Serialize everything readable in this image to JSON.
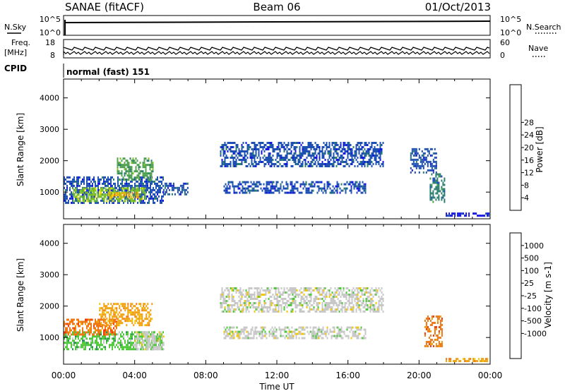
{
  "header": {
    "station": "SANAE (fitACF)",
    "beam": "Beam 06",
    "date": "01/Oct/2013"
  },
  "panels": {
    "nsky": {
      "label": "N.Sky",
      "ticks": [
        "10^5",
        "10^0"
      ],
      "right_label": "N.Search",
      "right_ticks": [
        "10^5",
        "10^0"
      ]
    },
    "freq": {
      "label_top": "Freq.",
      "label_bottom": "[MHz]",
      "ticks": [
        "18",
        "8"
      ],
      "right_label": "Nave",
      "right_ticks": [
        "60",
        "0"
      ]
    },
    "cpid": {
      "label": "CPID",
      "text": "normal (fast) 151"
    }
  },
  "chart_data": [
    {
      "type": "heatmap",
      "name": "power",
      "ylabel": "Slant Range [km]",
      "xlabel": "",
      "yticks": [
        1000,
        2000,
        3000,
        4000
      ],
      "ylim": [
        150,
        4600
      ],
      "xlim": [
        0,
        24
      ],
      "colorbar": {
        "label": "Power [dB]",
        "ticks": [
          "4",
          "8",
          "12",
          "16",
          "20",
          "24",
          "28"
        ],
        "colors": [
          "#1414e6",
          "#1e50b4",
          "#2d7f6e",
          "#4fa04f",
          "#7fc41f",
          "#f0e00a",
          "#f0b40a",
          "#f07814",
          "#f03c0a",
          "#e60000"
        ]
      },
      "regions": [
        {
          "x0": 0.0,
          "x1": 5.6,
          "y0": 650,
          "y1": 1500,
          "level": 1
        },
        {
          "x0": 0.5,
          "x1": 4.6,
          "y0": 700,
          "y1": 1150,
          "level": 4
        },
        {
          "x0": 2.5,
          "x1": 4.2,
          "y0": 800,
          "y1": 1000,
          "level": 6
        },
        {
          "x0": 3.0,
          "x1": 5.0,
          "y0": 1400,
          "y1": 2100,
          "level": 3
        },
        {
          "x0": 5.6,
          "x1": 7.0,
          "y0": 900,
          "y1": 1300,
          "level": 1
        },
        {
          "x0": 8.8,
          "x1": 18.0,
          "y0": 1850,
          "y1": 2600,
          "level": 1
        },
        {
          "x0": 9.0,
          "x1": 17.0,
          "y0": 950,
          "y1": 1350,
          "level": 1
        },
        {
          "x0": 19.5,
          "x1": 21.0,
          "y0": 1600,
          "y1": 2400,
          "level": 1
        },
        {
          "x0": 20.6,
          "x1": 21.4,
          "y0": 700,
          "y1": 1600,
          "level": 2
        },
        {
          "x0": 21.5,
          "x1": 23.9,
          "y0": 250,
          "y1": 350,
          "level": 0
        }
      ]
    },
    {
      "type": "heatmap",
      "name": "velocity",
      "ylabel": "Slant Range [km]",
      "xlabel": "Time UT",
      "xticks": [
        "00:00",
        "04:00",
        "08:00",
        "12:00",
        "16:00",
        "20:00",
        "00:00"
      ],
      "yticks": [
        1000,
        2000,
        3000,
        4000
      ],
      "ylim": [
        150,
        4600
      ],
      "xlim": [
        0,
        24
      ],
      "colorbar": {
        "label": "Velocity [m s-1]",
        "ticks": [
          "1000",
          "500",
          "100",
          "25",
          "-25",
          "-100",
          "-500",
          "-1000"
        ],
        "colors": [
          "#1414c8",
          "#1e50b4",
          "#2d8c5a",
          "#50c83c",
          "#c8c8c8",
          "#f0c80a",
          "#f0a00a",
          "#f07814",
          "#f03c0a",
          "#e60000"
        ]
      },
      "regions": [
        {
          "x0": 0.0,
          "x1": 5.6,
          "y0": 650,
          "y1": 1200,
          "level": 3
        },
        {
          "x0": 4.0,
          "x1": 5.6,
          "y0": 650,
          "y1": 1200,
          "level": 4
        },
        {
          "x0": 0.0,
          "x1": 3.0,
          "y0": 1100,
          "y1": 1600,
          "level": 7
        },
        {
          "x0": 2.0,
          "x1": 5.0,
          "y0": 1400,
          "y1": 2100,
          "level": 6
        },
        {
          "x0": 8.8,
          "x1": 18.0,
          "y0": 1850,
          "y1": 2600,
          "level": 4
        },
        {
          "x0": 9.0,
          "x1": 17.0,
          "y0": 950,
          "y1": 1350,
          "level": 4
        },
        {
          "x0": 20.3,
          "x1": 21.3,
          "y0": 700,
          "y1": 1700,
          "level": 7
        },
        {
          "x0": 21.5,
          "x1": 23.9,
          "y0": 250,
          "y1": 350,
          "level": 6
        }
      ]
    }
  ]
}
